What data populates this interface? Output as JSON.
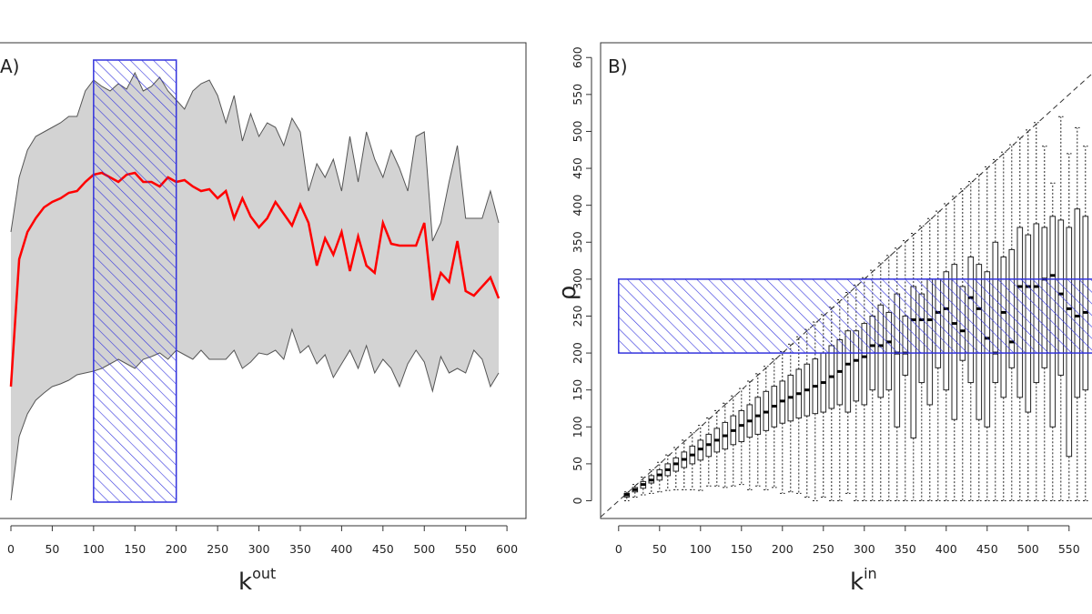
{
  "chart_data": [
    {
      "type": "line",
      "panel_label": "A)",
      "xlabel": "k",
      "xlabel_superscript": "out",
      "x": [
        0,
        10,
        20,
        30,
        40,
        50,
        60,
        70,
        80,
        90,
        100,
        110,
        120,
        130,
        140,
        150,
        160,
        170,
        180,
        190,
        200,
        210,
        220,
        230,
        240,
        250,
        260,
        270,
        280,
        290,
        300,
        310,
        320,
        330,
        340,
        350,
        360,
        370,
        380,
        390,
        400,
        410,
        420,
        430,
        440,
        450,
        460,
        470,
        480,
        490,
        500,
        510,
        520,
        530,
        540,
        550,
        560,
        570,
        580,
        590
      ],
      "series": [
        {
          "color": "#555555",
          "values": [
            335,
            395,
            425,
            440,
            445,
            450,
            455,
            462,
            462,
            490,
            502,
            495,
            490,
            498,
            492,
            510,
            490,
            495,
            505,
            490,
            480,
            470,
            490,
            498,
            502,
            485,
            455,
            485,
            435,
            465,
            440,
            455,
            450,
            430,
            460,
            445,
            380,
            410,
            395,
            415,
            380,
            440,
            390,
            445,
            415,
            395,
            425,
            405,
            380,
            440,
            445,
            325,
            345,
            390,
            430,
            350,
            350,
            350,
            380,
            345
          ]
        },
        {
          "color": "#555555",
          "values": [
            40,
            110,
            135,
            150,
            158,
            165,
            168,
            172,
            178,
            180,
            182,
            185,
            190,
            195,
            190,
            185,
            195,
            198,
            202,
            195,
            205,
            200,
            195,
            205,
            195,
            195,
            195,
            205,
            185,
            192,
            202,
            200,
            205,
            195,
            228,
            202,
            210,
            190,
            200,
            175,
            190,
            205,
            185,
            210,
            180,
            195,
            185,
            165,
            190,
            205,
            192,
            160,
            198,
            180,
            185,
            180,
            205,
            195,
            165,
            180
          ]
        },
        {
          "color": "#ff0000",
          "values": [
            165,
            305,
            335,
            350,
            362,
            368,
            372,
            378,
            380,
            390,
            398,
            400,
            395,
            390,
            398,
            400,
            390,
            390,
            385,
            395,
            390,
            392,
            385,
            380,
            382,
            372,
            380,
            350,
            372,
            352,
            340,
            350,
            368,
            355,
            342,
            365,
            345,
            298,
            328,
            310,
            335,
            292,
            330,
            298,
            290,
            345,
            322,
            320,
            320,
            320,
            345,
            260,
            290,
            280,
            325,
            270,
            265,
            275,
            285,
            262
          ]
        }
      ],
      "band": [
        0,
        1
      ],
      "band_color": "#d3d3d3",
      "highlight": {
        "x": [
          100,
          200
        ],
        "y": [
          38,
          524
        ],
        "color": "#3333dd"
      },
      "xlim": [
        -16.5,
        623
      ],
      "ylim": [
        20,
        543
      ],
      "xticks": [
        0,
        50,
        100,
        150,
        200,
        250,
        300,
        350,
        400,
        450,
        500,
        550,
        600
      ]
    },
    {
      "type": "box",
      "panel_label": "B)",
      "xlabel": "k",
      "xlabel_superscript": "in",
      "ylabel": "ρ",
      "x": [
        10,
        20,
        30,
        40,
        50,
        60,
        70,
        80,
        90,
        100,
        110,
        120,
        130,
        140,
        150,
        160,
        170,
        180,
        190,
        200,
        210,
        220,
        230,
        240,
        250,
        260,
        270,
        280,
        290,
        300,
        310,
        320,
        330,
        340,
        350,
        360,
        370,
        380,
        390,
        400,
        410,
        420,
        430,
        440,
        450,
        460,
        470,
        480,
        490,
        500,
        510,
        520,
        530,
        540,
        550,
        560,
        570
      ],
      "whisker_low": [
        0,
        5,
        8,
        10,
        12,
        14,
        15,
        15,
        15,
        14,
        20,
        20,
        18,
        20,
        22,
        15,
        20,
        15,
        18,
        10,
        12,
        10,
        5,
        0,
        5,
        0,
        0,
        10,
        0,
        0,
        0,
        0,
        0,
        0,
        0,
        0,
        0,
        0,
        0,
        0,
        0,
        0,
        0,
        0,
        0,
        0,
        0,
        0,
        0,
        0,
        0,
        0,
        0,
        0,
        0,
        0,
        0
      ],
      "q1": [
        5,
        12,
        17,
        24,
        28,
        34,
        40,
        45,
        50,
        55,
        60,
        66,
        70,
        76,
        80,
        86,
        90,
        95,
        100,
        105,
        108,
        112,
        115,
        118,
        120,
        125,
        130,
        120,
        135,
        130,
        150,
        140,
        150,
        100,
        170,
        85,
        160,
        130,
        180,
        150,
        110,
        190,
        160,
        110,
        100,
        160,
        140,
        180,
        140,
        120,
        160,
        180,
        100,
        170,
        60,
        140,
        150
      ],
      "median": [
        8,
        15,
        22,
        28,
        35,
        42,
        50,
        56,
        62,
        70,
        76,
        82,
        88,
        95,
        102,
        108,
        115,
        120,
        128,
        135,
        140,
        145,
        150,
        155,
        160,
        168,
        175,
        185,
        190,
        195,
        210,
        210,
        215,
        200,
        200,
        245,
        245,
        245,
        255,
        260,
        240,
        230,
        275,
        260,
        220,
        200,
        255,
        215,
        290,
        290,
        290,
        300,
        305,
        280,
        260,
        250,
        255
      ],
      "q3": [
        10,
        18,
        26,
        34,
        42,
        50,
        58,
        66,
        74,
        82,
        90,
        98,
        106,
        115,
        122,
        130,
        140,
        148,
        155,
        162,
        170,
        178,
        185,
        192,
        200,
        210,
        218,
        230,
        230,
        240,
        250,
        265,
        255,
        280,
        250,
        290,
        280,
        300,
        300,
        310,
        320,
        290,
        330,
        320,
        310,
        350,
        330,
        340,
        370,
        360,
        375,
        370,
        385,
        380,
        370,
        395,
        385
      ],
      "whisker_high": [
        12,
        22,
        32,
        42,
        52,
        62,
        72,
        82,
        92,
        102,
        112,
        122,
        132,
        142,
        152,
        162,
        172,
        182,
        192,
        202,
        212,
        222,
        232,
        242,
        252,
        262,
        272,
        282,
        292,
        302,
        312,
        322,
        332,
        342,
        352,
        362,
        372,
        382,
        392,
        402,
        412,
        422,
        432,
        442,
        452,
        462,
        472,
        482,
        492,
        502,
        512,
        480,
        430,
        520,
        470,
        505,
        480
      ],
      "diagonal": true,
      "highlight": {
        "x": [
          0,
          600
        ],
        "y": [
          200,
          300
        ],
        "color": "#3333dd"
      },
      "xlim": [
        -22,
        578
      ],
      "ylim": [
        -24,
        620
      ],
      "xticks": [
        0,
        50,
        100,
        150,
        200,
        250,
        300,
        350,
        400,
        450,
        500,
        550
      ],
      "yticks": [
        0,
        50,
        100,
        150,
        200,
        250,
        300,
        350,
        400,
        450,
        500,
        550,
        600
      ]
    }
  ]
}
